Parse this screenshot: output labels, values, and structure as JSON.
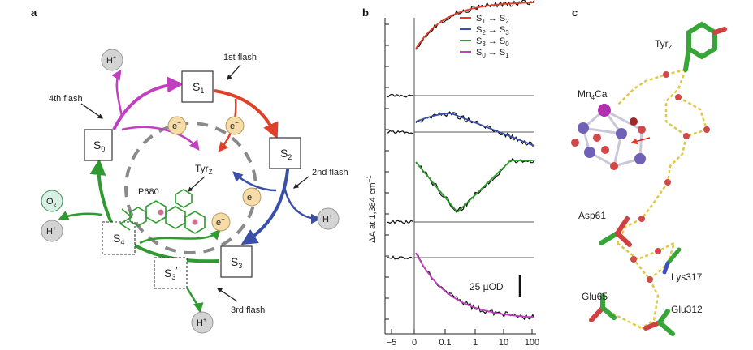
{
  "panels": {
    "a": "a",
    "b": "b",
    "c": "c"
  },
  "panel_a": {
    "states": {
      "s0": "S",
      "s0_sub": "0",
      "s1": "S",
      "s1_sub": "1",
      "s2": "S",
      "s2_sub": "2",
      "s3": "S",
      "s3_sub": "3",
      "s3p": "S",
      "s3p_sub": "3",
      "s3p_prime": "′",
      "s4": "S",
      "s4_sub": "4"
    },
    "flashes": {
      "first": "1st flash",
      "second": "2nd flash",
      "third": "3rd flash",
      "fourth": "4th flash"
    },
    "electron": "e",
    "electron_sup": "−",
    "proton": "H",
    "proton_sup": "+",
    "oxygen": "O",
    "oxygen_sub": "2",
    "tyr": "Tyr",
    "tyr_sub": "Z",
    "p680": "P680",
    "colors": {
      "s0_s1": "#c040c0",
      "s1_s2": "#e0402a",
      "s2_s3": "#3a50a8",
      "s3_s0": "#2f9a2f",
      "electron_fill": "#f6dca8",
      "proton_fill": "#d4d4d4",
      "oxygen_fill": "#d8f0e4"
    }
  },
  "panel_b": {
    "ylabel": "ΔA at 1,384 cm",
    "ylabel_sup": "−1",
    "scale_label": "25 µOD",
    "x_ticks": [
      "−5",
      "0",
      "0.1",
      "1",
      "10",
      "100"
    ],
    "legend": [
      {
        "from": "1",
        "to": "2",
        "color": "#e0402a"
      },
      {
        "from": "2",
        "to": "3",
        "color": "#3a50a8"
      },
      {
        "from": "3",
        "to": "0",
        "color": "#2f9a2f"
      },
      {
        "from": "0",
        "to": "1",
        "color": "#c040c0"
      }
    ],
    "legend_letter": "S",
    "arrow": "→"
  },
  "panel_c": {
    "tyr": "Tyr",
    "tyr_sub": "Z",
    "mn": "Mn",
    "mn_sub": "4",
    "mn_rest": "Ca",
    "asp61": "Asp61",
    "lys317": "Lys317",
    "glu65": "Glu65",
    "glu312": "Glu312"
  }
}
